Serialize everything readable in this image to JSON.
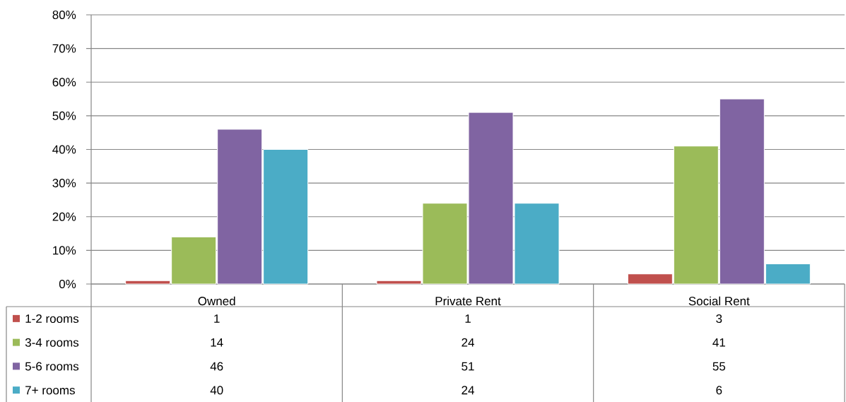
{
  "chart_data": {
    "type": "bar",
    "categories": [
      "Owned",
      "Private Rent",
      "Social Rent"
    ],
    "series": [
      {
        "name": "1-2 rooms",
        "color": "#c0504d",
        "values": [
          1,
          1,
          3
        ]
      },
      {
        "name": "3-4 rooms",
        "color": "#9bbb59",
        "values": [
          14,
          24,
          41
        ]
      },
      {
        "name": "5-6 rooms",
        "color": "#8064a2",
        "values": [
          46,
          51,
          55
        ]
      },
      {
        "name": "7+ rooms",
        "color": "#4bacc6",
        "values": [
          40,
          24,
          6
        ]
      }
    ],
    "ylim": [
      0,
      80
    ],
    "yticks": [
      {
        "value": 0,
        "label": "0%"
      },
      {
        "value": 10,
        "label": "10%"
      },
      {
        "value": 20,
        "label": "20%"
      },
      {
        "value": 30,
        "label": "30%"
      },
      {
        "value": 40,
        "label": "40%"
      },
      {
        "value": 50,
        "label": "50%"
      },
      {
        "value": 60,
        "label": "60%"
      },
      {
        "value": 70,
        "label": "70%"
      },
      {
        "value": 80,
        "label": "80%"
      }
    ],
    "grid": "y",
    "legend": "bottom left",
    "data_labels": true
  }
}
